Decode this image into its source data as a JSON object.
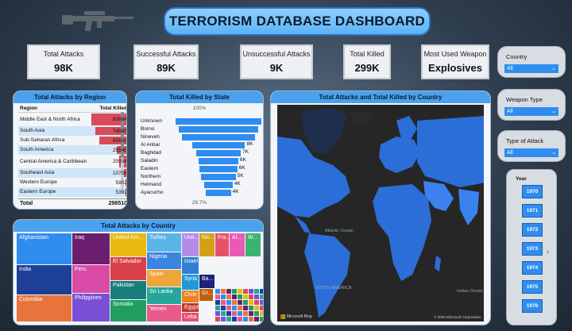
{
  "title": "TERRORISM DATABASE DASHBOARD",
  "kpis": [
    {
      "label": "Total Attacks",
      "value": "98K"
    },
    {
      "label": "Successful Attacks",
      "value": "89K"
    },
    {
      "label": "Unsuccessful Attacks",
      "value": "9K"
    },
    {
      "label": "Total Killed",
      "value": "299K"
    },
    {
      "label": "Most Used Weapon",
      "value": "Explosives"
    }
  ],
  "region_table": {
    "title": "Total Attacks by Region",
    "col_region": "Region",
    "col_killed": "Total Killed",
    "rows": [
      {
        "name": "Middle East & North Africa",
        "value": "83684",
        "num": 83684
      },
      {
        "name": "South Asia",
        "value": "74585",
        "num": 74585
      },
      {
        "name": "Sub-Saharan Africa",
        "value": "65609",
        "num": 65609
      },
      {
        "name": "South America",
        "value": "25546",
        "num": 25546
      },
      {
        "name": "Central America & Caribbean",
        "value": "20934",
        "num": 20934
      },
      {
        "name": "Southeast Asia",
        "value": "10706",
        "num": 10706
      },
      {
        "name": "Western Europe",
        "value": "5902",
        "num": 5902
      },
      {
        "name": "Eastern Europe",
        "value": "5392",
        "num": 5392
      }
    ],
    "total_label": "Total",
    "total_value": "298510"
  },
  "funnel": {
    "title": "Total Killed by State",
    "top_pct": "100%",
    "bottom_pct": "28.7%",
    "rows": [
      {
        "name": "Unknown",
        "value": "",
        "frac": 1.0
      },
      {
        "name": "Borno",
        "value": "",
        "frac": 0.93
      },
      {
        "name": "Nineveh",
        "value": "",
        "frac": 0.86
      },
      {
        "name": "Al Anbar",
        "value": "8K",
        "frac": 0.62
      },
      {
        "name": "Baghdad",
        "value": "7K",
        "frac": 0.52
      },
      {
        "name": "Saladin",
        "value": "6K",
        "frac": 0.46
      },
      {
        "name": "Eastern",
        "value": "6K",
        "frac": 0.44
      },
      {
        "name": "Northern",
        "value": "5K",
        "frac": 0.4
      },
      {
        "name": "Helmand",
        "value": "4K",
        "frac": 0.33
      },
      {
        "name": "Ayacucho",
        "value": "4K",
        "frac": 0.29
      }
    ]
  },
  "map": {
    "title": "Total Attacks and Total Killed by Country",
    "ocean_atlantic": "Atlantic Ocean",
    "ocean_indian": "Indian Ocean",
    "south_america": "SOUTH AMERICA",
    "provider": "Microsoft Bing",
    "copyright": "© 2025 Microsoft Corporation"
  },
  "treemap": {
    "title": "Total Attacks by Country",
    "cells": [
      {
        "label": "Afghanistan",
        "color": "#2f8df0"
      },
      {
        "label": "India",
        "color": "#1d3f95"
      },
      {
        "label": "Colombia",
        "color": "#e8743b"
      },
      {
        "label": "Iraq",
        "color": "#6b1e6e"
      },
      {
        "label": "Peru",
        "color": "#d94ba6"
      },
      {
        "label": "Philippines",
        "color": "#7a4fd8"
      },
      {
        "label": "United Kin...",
        "color": "#e8b90e"
      },
      {
        "label": "El Salvador",
        "color": "#d9404a"
      },
      {
        "label": "Pakistan",
        "color": "#197d7d"
      },
      {
        "label": "Somalia",
        "color": "#1f9e5f"
      },
      {
        "label": "Turkey",
        "color": "#5ab4e8"
      },
      {
        "label": "Nigeria",
        "color": "#3b84e0"
      },
      {
        "label": "Spain",
        "color": "#f0a53a"
      },
      {
        "label": "Sri Lanka",
        "color": "#26a69a"
      },
      {
        "label": "Yemen",
        "color": "#e85a8a"
      },
      {
        "label": "Unit...",
        "color": "#b48ce8"
      },
      {
        "label": "Israel",
        "color": "#2f7fd4"
      },
      {
        "label": "Syria",
        "color": "#1e9ad6"
      },
      {
        "label": "Chile",
        "color": "#e8831e"
      },
      {
        "label": "Egypt",
        "color": "#c0392b"
      },
      {
        "label": "Leba...",
        "color": "#e84e7a"
      },
      {
        "label": "Nic...",
        "color": "#d4a017"
      },
      {
        "label": "Fra...",
        "color": "#e8506a"
      },
      {
        "label": "Al...",
        "color": "#e85ab4"
      },
      {
        "label": "W...",
        "color": "#3cb371"
      },
      {
        "label": "Ba...",
        "color": "#1a237e"
      },
      {
        "label": "Gr...",
        "color": "#c06010"
      }
    ]
  },
  "slicers": [
    {
      "label": "Country",
      "value": "All"
    },
    {
      "label": "Weapon Type",
      "value": "All"
    },
    {
      "label": "Type of Attack",
      "value": "All"
    }
  ],
  "year_slicer": {
    "label": "Year",
    "years": [
      "1970",
      "1971",
      "1972",
      "1973",
      "1974",
      "1975",
      "1976"
    ]
  }
}
